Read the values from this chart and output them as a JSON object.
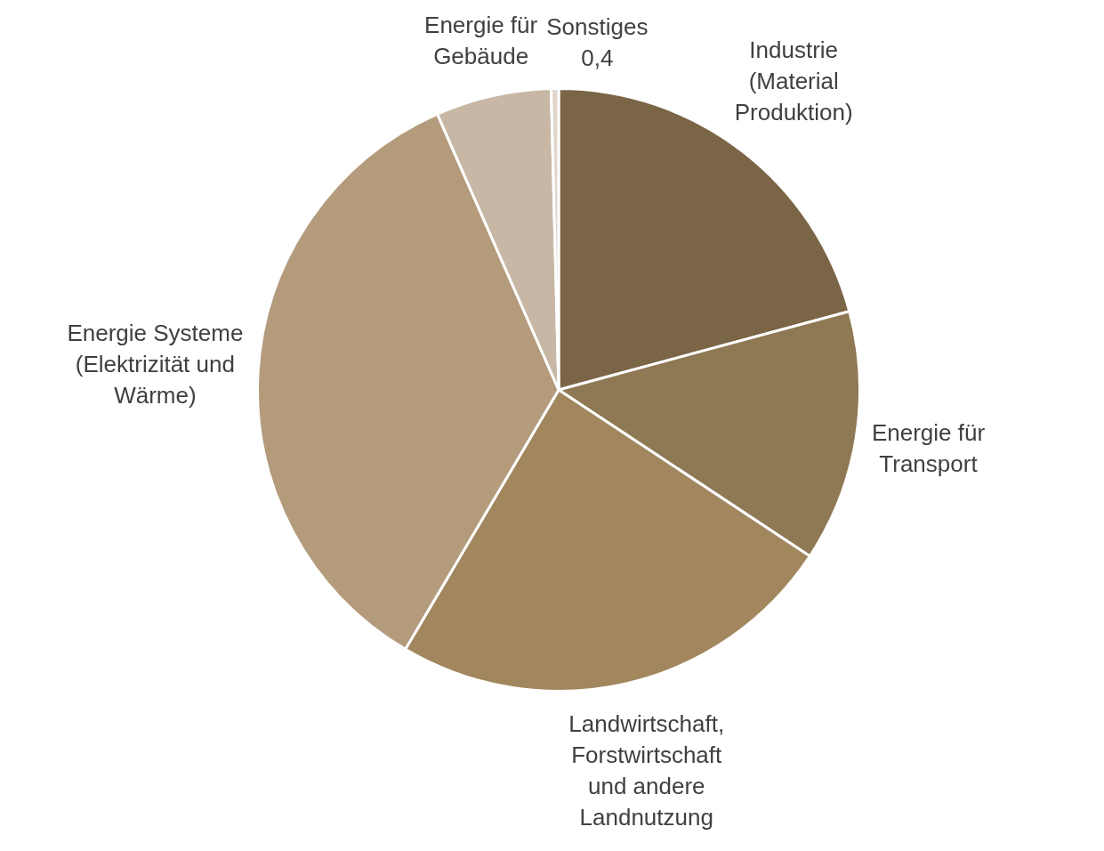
{
  "chart_data": {
    "type": "pie",
    "categories": [
      "Industrie (Material Produktion)",
      "Energie für Transport",
      "Landwirtschaft, Forstwirtschaft und andere Landnutzung",
      "Energie Systeme (Elektrizität und Wärme)",
      "Energie für Gebäude",
      "Sonstiges"
    ],
    "values": [
      20.8,
      13.5,
      24.2,
      34.9,
      6.2,
      0.4
    ],
    "colors": [
      "#7b6547",
      "#8f7854",
      "#a2865e",
      "#b39b7c",
      "#c7b7a4",
      "#e0d6cc"
    ],
    "value_labels": [
      null,
      null,
      null,
      null,
      null,
      "0,4"
    ],
    "legend": false
  }
}
